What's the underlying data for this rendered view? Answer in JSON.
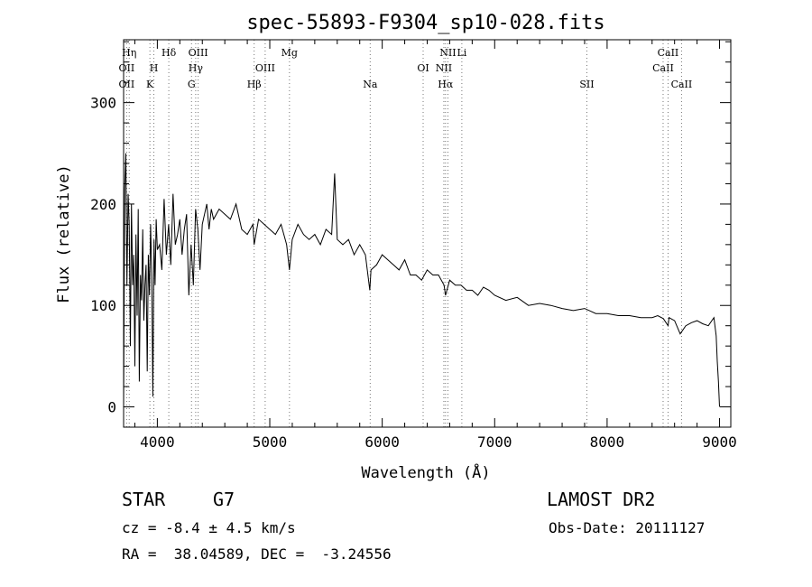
{
  "chart_data": {
    "type": "line",
    "title": "spec-55893-F9304_sp10-028.fits",
    "xlabel": "Wavelength (Å)",
    "ylabel": "Flux (relative)",
    "xlim": [
      3700,
      9100
    ],
    "ylim": [
      -20,
      362
    ],
    "xticks": [
      4000,
      5000,
      6000,
      7000,
      8000,
      9000
    ],
    "yticks": [
      0,
      100,
      200,
      300
    ],
    "grid": false,
    "series": [
      {
        "x": [
          3700,
          3710,
          3720,
          3730,
          3740,
          3750,
          3760,
          3770,
          3780,
          3790,
          3800,
          3810,
          3820,
          3830,
          3840,
          3850,
          3860,
          3870,
          3880,
          3890,
          3900,
          3910,
          3920,
          3930,
          3940,
          3950,
          3960,
          3970,
          3980,
          3990,
          4000,
          4020,
          4040,
          4060,
          4080,
          4100,
          4120,
          4140,
          4160,
          4180,
          4200,
          4220,
          4240,
          4260,
          4280,
          4300,
          4320,
          4340,
          4360,
          4380,
          4400,
          4420,
          4440,
          4460,
          4480,
          4500,
          4550,
          4600,
          4650,
          4700,
          4750,
          4800,
          4850,
          4861,
          4900,
          4950,
          5000,
          5050,
          5100,
          5150,
          5175,
          5200,
          5250,
          5300,
          5350,
          5400,
          5450,
          5500,
          5550,
          5577,
          5600,
          5650,
          5700,
          5750,
          5800,
          5850,
          5890,
          5900,
          5950,
          6000,
          6050,
          6100,
          6150,
          6200,
          6250,
          6300,
          6350,
          6400,
          6450,
          6500,
          6550,
          6563,
          6600,
          6650,
          6700,
          6750,
          6800,
          6850,
          6900,
          6950,
          7000,
          7100,
          7200,
          7300,
          7400,
          7500,
          7600,
          7700,
          7800,
          7900,
          8000,
          8100,
          8200,
          8300,
          8400,
          8450,
          8500,
          8542,
          8550,
          8600,
          8650,
          8700,
          8750,
          8800,
          8850,
          8900,
          8950,
          8970,
          8980,
          8990,
          9000
        ],
        "values": [
          0,
          215,
          250,
          120,
          210,
          180,
          60,
          200,
          120,
          150,
          40,
          170,
          90,
          195,
          25,
          130,
          105,
          175,
          85,
          120,
          140,
          35,
          150,
          110,
          180,
          130,
          10,
          165,
          120,
          185,
          155,
          160,
          135,
          205,
          150,
          180,
          140,
          210,
          160,
          170,
          185,
          150,
          175,
          190,
          110,
          160,
          120,
          195,
          175,
          135,
          180,
          190,
          200,
          175,
          195,
          185,
          195,
          190,
          185,
          200,
          175,
          170,
          180,
          160,
          185,
          180,
          175,
          170,
          180,
          160,
          135,
          165,
          180,
          170,
          165,
          170,
          160,
          175,
          170,
          230,
          165,
          160,
          165,
          150,
          160,
          150,
          115,
          135,
          140,
          150,
          145,
          140,
          135,
          145,
          130,
          130,
          125,
          135,
          130,
          130,
          120,
          110,
          125,
          120,
          120,
          115,
          115,
          110,
          118,
          115,
          110,
          105,
          108,
          100,
          102,
          100,
          97,
          95,
          97,
          92,
          92,
          90,
          90,
          88,
          88,
          90,
          87,
          80,
          88,
          85,
          72,
          80,
          83,
          85,
          82,
          80,
          88,
          70,
          45,
          25,
          0
        ]
      }
    ],
    "lines": [
      {
        "x": 3727,
        "labels": [
          "OII",
          "OII"
        ],
        "rows": [
          2,
          3
        ]
      },
      {
        "x": 3750,
        "labels": [
          "Hη"
        ],
        "rows": [
          1
        ]
      },
      {
        "x": 3934,
        "labels": [
          "K"
        ],
        "rows": [
          3
        ]
      },
      {
        "x": 3969,
        "labels": [
          "H"
        ],
        "rows": [
          2
        ]
      },
      {
        "x": 4102,
        "labels": [
          "Hδ"
        ],
        "rows": [
          1
        ]
      },
      {
        "x": 4304,
        "labels": [
          "G"
        ],
        "rows": [
          3
        ]
      },
      {
        "x": 4341,
        "labels": [
          "Hγ"
        ],
        "rows": [
          2
        ]
      },
      {
        "x": 4363,
        "labels": [
          "OIII"
        ],
        "rows": [
          1
        ]
      },
      {
        "x": 4861,
        "labels": [
          "Hβ"
        ],
        "rows": [
          3
        ]
      },
      {
        "x": 4959,
        "labels": [
          "OIII"
        ],
        "rows": [
          2
        ]
      },
      {
        "x": 5175,
        "labels": [
          "Mg"
        ],
        "rows": [
          1
        ]
      },
      {
        "x": 5893,
        "labels": [
          "Na"
        ],
        "rows": [
          3
        ]
      },
      {
        "x": 6364,
        "labels": [
          "OI"
        ],
        "rows": [
          2
        ]
      },
      {
        "x": 6548,
        "labels": [
          "NII"
        ],
        "rows": [
          2
        ]
      },
      {
        "x": 6563,
        "labels": [
          "Hα"
        ],
        "rows": [
          3
        ]
      },
      {
        "x": 6584,
        "labels": [
          "NII"
        ],
        "rows": [
          1
        ]
      },
      {
        "x": 6708,
        "labels": [
          "Li"
        ],
        "rows": [
          1
        ]
      },
      {
        "x": 7820,
        "labels": [
          "SII"
        ],
        "rows": [
          3
        ]
      },
      {
        "x": 8498,
        "labels": [
          "CaII"
        ],
        "rows": [
          2
        ]
      },
      {
        "x": 8542,
        "labels": [
          "CaII"
        ],
        "rows": [
          1
        ]
      },
      {
        "x": 8662,
        "labels": [
          "CaII"
        ],
        "rows": [
          3
        ]
      }
    ]
  },
  "info": {
    "object_class": "STAR",
    "subclass": "G7",
    "survey": "LAMOST DR2",
    "velocity": "cz = -8.4 ± 4.5 km/s",
    "obs_date": "Obs-Date: 20111127",
    "coords": "RA =  38.04589, DEC =  -3.24556"
  }
}
